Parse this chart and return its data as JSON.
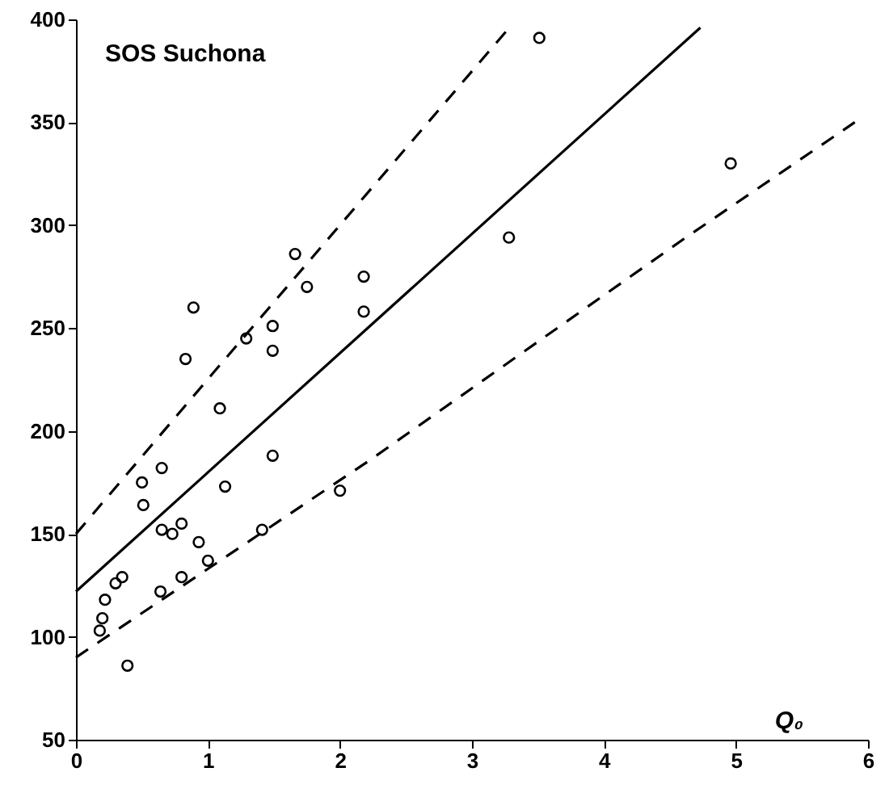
{
  "chart_data": {
    "type": "scatter",
    "title": "SOS Suchona",
    "xlabel": "Q₀",
    "xlim": [
      0,
      6
    ],
    "xticks": [
      0,
      1,
      2,
      3,
      4,
      5,
      6
    ],
    "ylim": [
      50,
      400
    ],
    "yticks": [
      50,
      100,
      150,
      200,
      250,
      300,
      350,
      400
    ],
    "grid": false,
    "marker": "circle",
    "series": [
      {
        "type": "scatter",
        "color": "#000000",
        "x": [
          0.18,
          0.2,
          0.22,
          0.3,
          0.35,
          0.39,
          0.5,
          0.51,
          0.64,
          0.65,
          0.65,
          0.73,
          0.8,
          0.8,
          0.83,
          0.89,
          0.93,
          1.0,
          1.09,
          1.13,
          1.29,
          1.41,
          1.49,
          1.49,
          1.49,
          1.66,
          1.75,
          2.0,
          2.18,
          2.18,
          3.28,
          3.51,
          4.96
        ],
        "values": [
          103,
          109,
          118,
          126,
          129,
          86,
          175,
          164,
          122,
          152,
          182,
          150,
          155,
          129,
          235,
          260,
          146,
          137,
          211,
          173,
          245,
          152,
          251,
          239,
          188,
          286,
          270,
          171,
          275,
          258,
          294,
          391,
          330
        ]
      },
      {
        "type": "line",
        "color": "#000000",
        "line_style": "solid",
        "marker": "none",
        "x": [
          0,
          4.73
        ],
        "values": [
          122,
          396
        ]
      },
      {
        "type": "line",
        "color": "#000000",
        "line_style": "dashed",
        "marker": "none",
        "x": [
          0,
          1.05,
          3.27
        ],
        "values": [
          150,
          229,
          395
        ]
      },
      {
        "type": "line",
        "color": "#000000",
        "line_style": "dashed",
        "marker": "none",
        "x": [
          0,
          2.23,
          4.62,
          5.9
        ],
        "values": [
          90,
          186,
          294,
          350
        ]
      }
    ]
  }
}
